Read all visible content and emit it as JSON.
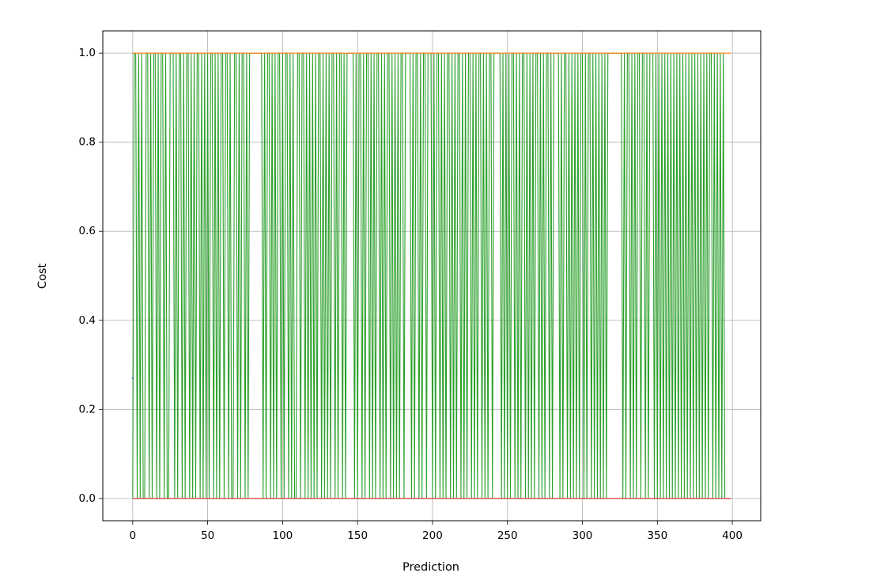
{
  "chart_data": {
    "type": "line",
    "xlabel": "Prediction",
    "ylabel": "Cost",
    "xlim": [
      -19.95,
      418.95
    ],
    "ylim": [
      -0.05,
      1.05
    ],
    "xticks": [
      0,
      50,
      100,
      150,
      200,
      250,
      300,
      350,
      400
    ],
    "yticks": [
      {
        "value": 0,
        "label": "0.0"
      },
      {
        "value": 0.2,
        "label": "0.2"
      },
      {
        "value": 0.4,
        "label": "0.4"
      },
      {
        "value": 0.6,
        "label": "0.6"
      },
      {
        "value": 0.8,
        "label": "0.8"
      },
      {
        "value": 1,
        "label": "1.0"
      }
    ],
    "grid": true,
    "series": [
      {
        "color": "#2ca02c",
        "values": [
          0,
          1,
          1,
          0,
          1,
          0,
          1,
          0,
          0,
          1,
          1,
          0,
          1,
          0,
          1,
          1,
          0,
          1,
          0,
          1,
          1,
          0,
          1,
          0,
          0,
          1,
          1,
          1,
          0,
          1,
          0,
          1,
          1,
          0,
          1,
          0,
          1,
          1,
          0,
          1,
          0,
          1,
          0,
          1,
          1,
          0,
          1,
          0,
          1,
          0,
          1,
          0,
          1,
          1,
          0,
          1,
          0,
          1,
          0,
          1,
          1,
          0,
          1,
          1,
          0,
          1,
          0,
          0,
          1,
          1,
          0,
          1,
          0,
          1,
          1,
          0,
          1,
          0,
          1,
          1,
          1,
          1,
          1,
          1,
          1,
          1,
          1,
          0,
          1,
          0,
          1,
          1,
          0,
          1,
          0,
          1,
          0,
          1,
          1,
          0,
          1,
          0,
          1,
          1,
          0,
          1,
          0,
          1,
          0,
          0,
          1,
          1,
          0,
          1,
          1,
          0,
          1,
          0,
          1,
          0,
          1,
          0,
          1,
          0,
          1,
          1,
          0,
          1,
          0,
          1,
          0,
          1,
          0,
          1,
          1,
          0,
          1,
          0,
          1,
          1,
          0,
          1,
          0,
          1,
          1,
          1,
          1,
          1,
          0,
          1,
          0,
          1,
          1,
          0,
          1,
          0,
          1,
          1,
          0,
          1,
          0,
          1,
          0,
          1,
          1,
          0,
          1,
          0,
          1,
          0,
          1,
          1,
          0,
          1,
          0,
          1,
          0,
          1,
          0,
          1,
          1,
          0,
          1,
          1,
          1,
          1,
          0,
          1,
          0,
          1,
          1,
          0,
          1,
          0,
          1,
          1,
          0,
          1,
          1,
          1,
          0,
          1,
          0,
          1,
          1,
          0,
          1,
          0,
          1,
          0,
          1,
          1,
          0,
          1,
          0,
          1,
          0,
          1,
          1,
          0,
          1,
          0,
          1,
          0,
          1,
          1,
          0,
          1,
          0,
          1,
          0,
          1,
          1,
          0,
          1,
          0,
          1,
          0,
          1,
          1,
          0,
          1,
          1,
          1,
          1,
          1,
          0,
          1,
          0,
          1,
          0,
          1,
          0,
          1,
          1,
          0,
          1,
          0,
          1,
          0,
          1,
          1,
          0,
          1,
          0,
          1,
          0,
          1,
          0,
          1,
          1,
          0,
          1,
          0,
          1,
          0,
          1,
          1,
          0,
          1,
          0,
          1,
          1,
          1,
          1,
          0,
          1,
          0,
          1,
          1,
          0,
          1,
          0,
          1,
          0,
          1,
          0,
          1,
          0,
          1,
          1,
          0,
          1,
          0,
          1,
          1,
          0,
          1,
          0,
          1,
          0,
          1,
          0,
          1,
          0,
          1,
          0,
          1,
          1,
          1,
          1,
          1,
          1,
          1,
          1,
          1,
          1,
          0,
          1,
          0,
          1,
          1,
          0,
          1,
          0,
          1,
          0,
          1,
          1,
          0,
          1,
          1,
          0,
          1,
          0,
          1,
          1,
          1,
          0,
          1,
          0,
          1,
          0,
          1,
          0,
          1,
          0,
          1,
          0,
          1,
          0,
          1,
          0,
          1,
          0,
          1,
          0,
          1,
          0,
          1,
          0,
          1,
          0,
          1,
          0,
          1,
          0,
          1,
          0,
          1,
          0,
          1,
          0,
          1,
          0,
          1,
          1,
          0,
          1,
          0,
          1,
          0,
          1,
          0,
          1,
          0
        ]
      },
      {
        "color": "#ff7f0e",
        "x": [
          0,
          399
        ],
        "values": [
          1,
          1
        ]
      },
      {
        "color": "#d62728",
        "x": [
          0,
          399
        ],
        "values": [
          0,
          0
        ]
      },
      {
        "color": "#1f77b4",
        "x": [
          0
        ],
        "values": [
          0.27
        ]
      }
    ]
  }
}
